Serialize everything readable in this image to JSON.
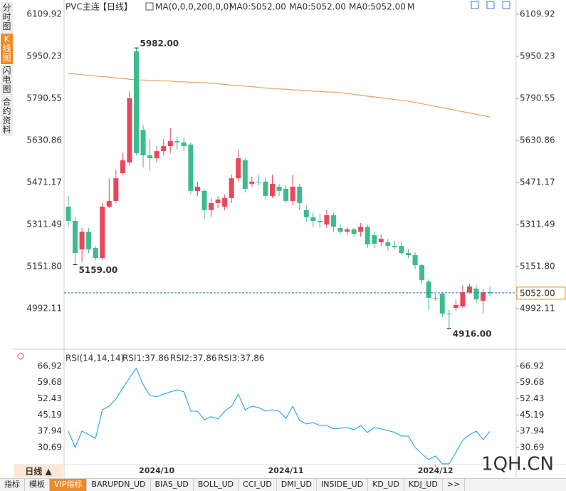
{
  "sidebar_tabs": [
    "分时图",
    "K线图",
    "闪电图",
    "合约资料"
  ],
  "chart_data": {
    "type": "candlestick",
    "header": {
      "symbol": "PVC主连",
      "period": "【日线】",
      "ma_setting": "MA(0,0,0,200,0,0)",
      "ma_values": [
        "MA0:5052.00",
        "MA0:5052.00",
        "MA0:5052.00"
      ],
      "ma_last": "M"
    },
    "categories": [
      null,
      null,
      null,
      null,
      null,
      null,
      null,
      null,
      null,
      null,
      null,
      null,
      null,
      "2024/10",
      null,
      null,
      null,
      null,
      null,
      null,
      null,
      null,
      null,
      null,
      null,
      null,
      null,
      null,
      null,
      null,
      null,
      null,
      "2024/11",
      null,
      null,
      null,
      null,
      null,
      null,
      null,
      null,
      null,
      null,
      null,
      null,
      null,
      null,
      null,
      null,
      null,
      null,
      null,
      null,
      null,
      "2024/12",
      null,
      null,
      null,
      null,
      null,
      null,
      null,
      null
    ],
    "open": [
      5379,
      5325,
      5217,
      5284,
      5222,
      5184,
      5379,
      5401,
      5506,
      5547,
      5969,
      5671,
      5574,
      5563,
      5590,
      5609,
      5628,
      5623,
      5615,
      5439,
      5439,
      5366,
      5393,
      5379,
      5412,
      5487,
      5555,
      5466,
      5474,
      5474,
      5420,
      5455,
      5447,
      5401,
      5455,
      5366,
      5339,
      5325,
      5311,
      5347,
      5298,
      5284,
      5293,
      5284,
      5303,
      5271,
      5244,
      5244,
      5230,
      5230,
      5203,
      5195,
      5157,
      5095,
      5033,
      5049,
      4973,
      4995,
      5000,
      5054,
      5068,
      5022,
      5054
    ],
    "high": [
      5420,
      5339,
      5298,
      5298,
      5230,
      5393,
      5487,
      5520,
      5582,
      5818,
      5982,
      5690,
      5636,
      5609,
      5636,
      5677,
      5644,
      5642,
      5623,
      5474,
      5447,
      5412,
      5420,
      5425,
      5501,
      5596,
      5563,
      5493,
      5501,
      5487,
      5501,
      5466,
      5460,
      5501,
      5466,
      5385,
      5357,
      5352,
      5366,
      5357,
      5311,
      5303,
      5298,
      5317,
      5311,
      5284,
      5271,
      5257,
      5249,
      5244,
      5217,
      5206,
      5163,
      5103,
      5049,
      5054,
      4987,
      5027,
      5081,
      5087,
      5081,
      5068,
      5076
    ],
    "low": [
      5303,
      5159,
      5168,
      5203,
      5176,
      5176,
      5374,
      5393,
      5501,
      5536,
      5574,
      5528,
      5514,
      5547,
      5574,
      5582,
      5596,
      5590,
      5428,
      5420,
      5330,
      5339,
      5374,
      5366,
      5393,
      5474,
      5433,
      5455,
      5460,
      5406,
      5412,
      5420,
      5393,
      5385,
      5366,
      5320,
      5303,
      5298,
      5298,
      5284,
      5276,
      5271,
      5266,
      5266,
      5222,
      5222,
      5230,
      5211,
      5217,
      5195,
      5184,
      5141,
      5087,
      4987,
      5022,
      4960,
      4916,
      4984,
      4995,
      5049,
      5014,
      4973,
      5041
    ],
    "close": [
      5325,
      5203,
      5284,
      5217,
      5184,
      5379,
      5401,
      5487,
      5555,
      5791,
      5582,
      5574,
      5563,
      5590,
      5609,
      5628,
      5623,
      5609,
      5439,
      5455,
      5366,
      5393,
      5406,
      5412,
      5487,
      5563,
      5447,
      5474,
      5473,
      5420,
      5466,
      5439,
      5401,
      5455,
      5393,
      5339,
      5325,
      5320,
      5347,
      5303,
      5284,
      5293,
      5276,
      5303,
      5236,
      5238,
      5257,
      5230,
      5225,
      5203,
      5195,
      5157,
      5100,
      5033,
      5031,
      4973,
      4971,
      5006,
      5054,
      5076,
      5027,
      5054,
      5052
    ],
    "up_color": "#e8475c",
    "down_color": "#3cbc8c",
    "ma_series": {
      "color": "#f0a060",
      "values": [
        5885,
        5883,
        5880,
        5878,
        5875,
        5873,
        5871,
        5868,
        5866,
        5863,
        5861,
        5860,
        5859,
        5858,
        5857,
        5856,
        5854,
        5853,
        5852,
        5851,
        5850,
        5848,
        5846,
        5843,
        5841,
        5839,
        5837,
        5835,
        5832,
        5830,
        5828,
        5826,
        5825,
        5823,
        5822,
        5820,
        5818,
        5817,
        5815,
        5814,
        5812,
        5809,
        5806,
        5802,
        5799,
        5796,
        5793,
        5790,
        5786,
        5783,
        5780,
        5775,
        5770,
        5765,
        5760,
        5755,
        5750,
        5745,
        5740,
        5735,
        5730,
        5725,
        5720
      ]
    },
    "ylim": [
      4843.3,
      6150.5
    ],
    "yticks": [
      6109.92,
      5950.23,
      5790.55,
      5630.86,
      5471.17,
      5311.49,
      {
        "value": 5151.8,
        "label": "5151.80"
      },
      4992.11
    ],
    "annotations": [
      {
        "value": 5982,
        "label": "5982.00"
      },
      {
        "value": 5159,
        "label": "5159.00"
      },
      {
        "value": 4916,
        "label": "4916.00"
      }
    ],
    "last_price": {
      "value": 5052,
      "label": "5052.00",
      "color": "#1a73c8"
    },
    "rsi": {
      "title": "RSI(14,14,14)",
      "labels": [
        "RSI1:37.86",
        "RSI2:37.86",
        "RSI3:37.86"
      ],
      "color": "#33aaee",
      "values": [
        38.0,
        30.7,
        38.0,
        36.4,
        34.8,
        47.5,
        49.1,
        52.3,
        57.1,
        61.8,
        66.0,
        58.7,
        53.9,
        53.3,
        54.5,
        55.5,
        56.4,
        55.5,
        46.9,
        46.9,
        43.1,
        44.4,
        43.4,
        46.9,
        49.1,
        54.5,
        47.5,
        49.1,
        48.5,
        46.9,
        47.5,
        46.9,
        43.7,
        49.1,
        42.8,
        41.2,
        41.8,
        40.5,
        40.5,
        39.0,
        39.3,
        39.6,
        38.6,
        40.5,
        37.4,
        39.6,
        39.0,
        38.3,
        37.4,
        35.8,
        35.8,
        30.7,
        27.8,
        25.3,
        26.9,
        23.4,
        23.4,
        28.5,
        33.9,
        36.4,
        38.0,
        34.2,
        37.86
      ],
      "ylim": [
        20.5,
        73.9
      ],
      "yticks": [
        66.92,
        59.68,
        52.43,
        45.19,
        37.94,
        30.69
      ]
    }
  },
  "period_tab": "日线 ▲",
  "watermark": "1QH.CN",
  "toolbar": [
    "指标",
    "模板",
    "VIP指标",
    "BARUPDN_UD",
    "BIAS_UD",
    "BOLL_UD",
    "CCI_UD",
    "DMI_UD",
    "INSIDE_UD",
    "KD_UD",
    "KDJ_UD",
    ">>"
  ]
}
